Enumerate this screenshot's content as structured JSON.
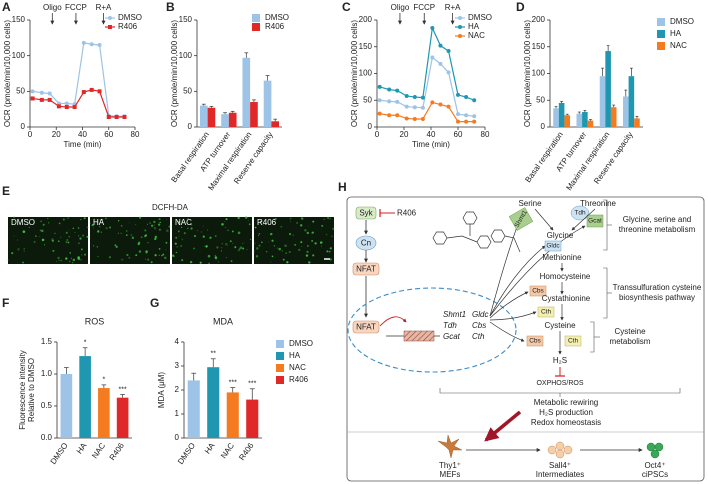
{
  "panel_labels": [
    "A",
    "B",
    "C",
    "D",
    "E",
    "F",
    "G",
    "H"
  ],
  "chart_data": [
    {
      "type": "line",
      "ylabel": "OCR (pmole/min/10,000 cells)",
      "xlabel": "Time (min)",
      "x": [
        2,
        9,
        15,
        22,
        28,
        34,
        41,
        47,
        53,
        60,
        66,
        72
      ],
      "xlim": [
        0,
        80
      ],
      "xticks": [
        0,
        20,
        40,
        60,
        80
      ],
      "ylim": [
        0,
        150
      ],
      "yticks": [
        0,
        50,
        100,
        150
      ],
      "legend": "upper right",
      "annotations": [
        {
          "text": "Oligo",
          "x": 17
        },
        {
          "text": "FCCP",
          "x": 35
        },
        {
          "text": "R+A",
          "x": 56
        }
      ],
      "series": [
        {
          "name": "DMSO",
          "color": "#9dc3e6",
          "marker": "circle",
          "values": [
            50,
            48,
            47,
            33,
            33,
            32,
            118,
            116,
            115,
            16,
            15,
            15
          ]
        },
        {
          "name": "R406",
          "color": "#e02828",
          "marker": "square",
          "values": [
            40,
            38,
            38,
            29,
            28,
            28,
            49,
            52,
            50,
            14,
            14,
            14
          ]
        }
      ]
    },
    {
      "type": "bar",
      "ylabel": "OCR (pmole/min/10,000 cells)",
      "categories": [
        "Basal respiration",
        "ATP turnover",
        "Maximal respiration",
        "Reserve capacity"
      ],
      "ylim": [
        0,
        150
      ],
      "yticks": [
        0,
        50,
        100,
        150
      ],
      "legend": "upper right",
      "series": [
        {
          "name": "DMSO",
          "color": "#9dc3e6",
          "values": [
            30,
            18,
            97,
            65
          ],
          "errors": [
            2,
            2,
            7,
            7
          ]
        },
        {
          "name": "R406",
          "color": "#e02828",
          "values": [
            27,
            20,
            35,
            8
          ],
          "errors": [
            2,
            2,
            3,
            3
          ]
        }
      ]
    },
    {
      "type": "line",
      "ylabel": "OCR (pmole/min/10,000 cells)",
      "xlabel": "Time (min)",
      "x": [
        2,
        9,
        15,
        22,
        28,
        34,
        41,
        47,
        53,
        60,
        66,
        72
      ],
      "xlim": [
        0,
        80
      ],
      "xticks": [
        0,
        20,
        40,
        60,
        80
      ],
      "ylim": [
        0,
        200
      ],
      "yticks": [
        0,
        50,
        100,
        150,
        200
      ],
      "legend": "upper right",
      "annotations": [
        {
          "text": "Oligo",
          "x": 17
        },
        {
          "text": "FCCP",
          "x": 35
        },
        {
          "text": "R+A",
          "x": 56
        }
      ],
      "series": [
        {
          "name": "DMSO",
          "color": "#9dc3e6",
          "marker": "circle",
          "values": [
            50,
            48,
            47,
            38,
            37,
            36,
            130,
            118,
            102,
            24,
            22,
            20
          ]
        },
        {
          "name": "HA",
          "color": "#1f97b0",
          "marker": "circle",
          "values": [
            75,
            70,
            68,
            58,
            56,
            55,
            185,
            152,
            142,
            60,
            56,
            50
          ]
        },
        {
          "name": "NAC",
          "color": "#f47b20",
          "marker": "circle",
          "values": [
            25,
            22,
            22,
            16,
            15,
            15,
            46,
            42,
            38,
            10,
            10,
            10
          ]
        }
      ]
    },
    {
      "type": "bar",
      "ylabel": "OCR (pmole/min/10,000 cells)",
      "categories": [
        "Basal respiration",
        "ATP turnover",
        "Maximal respiration",
        "Reserve capacity"
      ],
      "ylim": [
        0,
        200
      ],
      "yticks": [
        0,
        50,
        100,
        150,
        200
      ],
      "legend": "right",
      "series": [
        {
          "name": "DMSO",
          "color": "#9dc3e6",
          "values": [
            35,
            25,
            95,
            57
          ],
          "errors": [
            3,
            3,
            15,
            12
          ]
        },
        {
          "name": "HA",
          "color": "#1f97b0",
          "values": [
            45,
            28,
            142,
            95
          ],
          "errors": [
            3,
            3,
            10,
            15
          ]
        },
        {
          "name": "NAC",
          "color": "#f47b20",
          "values": [
            22,
            12,
            37,
            16
          ],
          "errors": [
            2,
            2,
            4,
            4
          ]
        }
      ]
    },
    {
      "type": "bar",
      "title": "ROS",
      "ylabel": [
        "Fluorescence intensity",
        "Relative to DMSO"
      ],
      "categories": [
        "DMSO",
        "HA",
        "NAC",
        "R406"
      ],
      "colors": [
        "#9dc3e6",
        "#1f97b0",
        "#f47b20",
        "#e02828"
      ],
      "values": [
        1.0,
        1.28,
        0.78,
        0.63
      ],
      "errors": [
        0.1,
        0.13,
        0.05,
        0.05
      ],
      "significance": [
        null,
        "*",
        "*",
        "***"
      ],
      "ylim": [
        0,
        1.5
      ],
      "yticks": [
        {
          "value": 0,
          "label": "0.0"
        },
        0.5,
        {
          "value": 1,
          "label": "1.0"
        },
        1.5
      ]
    },
    {
      "type": "bar",
      "title": "MDA",
      "ylabel": "MDA (μM)",
      "categories": [
        "DMSO",
        "HA",
        "NAC",
        "R406"
      ],
      "colors": [
        "#9dc3e6",
        "#1f97b0",
        "#f47b20",
        "#e02828"
      ],
      "values": [
        2.4,
        2.95,
        1.9,
        1.6
      ],
      "errors": [
        0.3,
        0.35,
        0.2,
        0.45
      ],
      "significance": [
        null,
        "**",
        "***",
        "***"
      ],
      "legend": "right",
      "ylim": [
        0,
        4
      ],
      "yticks": [
        0,
        1,
        2,
        3,
        4
      ]
    }
  ],
  "image_panel": {
    "title": "DCFH-DA",
    "labels": [
      "DMSO",
      "HA",
      "NAC",
      "R406"
    ]
  },
  "diagram": {
    "syk": "Syk",
    "inhibitor": "R406",
    "cn": "Cn",
    "nfat_cytoplasm": "NFAT",
    "nfat_nucleus": "NFAT",
    "target_genes": [
      "Shmt1",
      "Tdh",
      "Gcat",
      "Gldc",
      "Cbs",
      "Cth"
    ],
    "metabolites": [
      "Serine",
      "Threonine",
      "Glycine",
      "Methionine",
      "Homocysteine",
      "Cystathionine",
      "Cysteine",
      "H₂S",
      "OXPHOS/ROS"
    ],
    "enzymes": [
      "Shmt1",
      "Tdh",
      "Gcat",
      "Gldc",
      "Cbs",
      "Cth",
      "Cbs",
      "Cth"
    ],
    "pathways": [
      [
        "Glycine, serine and",
        "threonine metabolism"
      ],
      [
        "Transsulfuration cysteine",
        "biosynthesis pathway"
      ],
      [
        "Cysteine",
        "metabolism"
      ]
    ],
    "outcomes": [
      "Metabolic rewiring",
      "H₂S production",
      "Redox homeostasis"
    ],
    "cells": [
      [
        "Thy1⁺",
        "MEFs"
      ],
      [
        "Sall4⁺",
        "Intermediates"
      ],
      [
        "Oct4⁺",
        "ciPSCs"
      ]
    ]
  }
}
